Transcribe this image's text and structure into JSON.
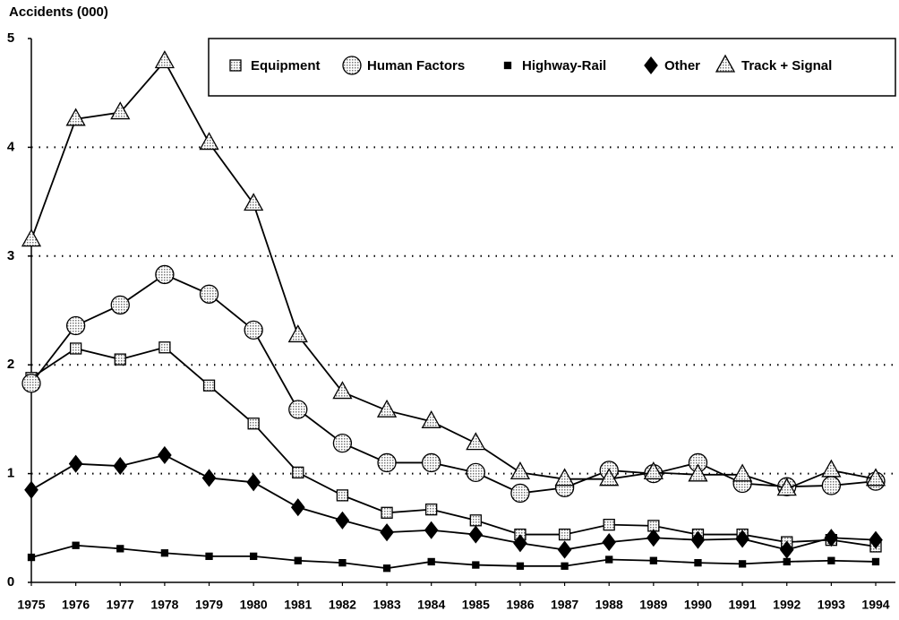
{
  "chart_data": {
    "type": "line",
    "y_axis_label": "Accidents (000)",
    "categories": [
      "1975",
      "1976",
      "1977",
      "1978",
      "1979",
      "1980",
      "1981",
      "1982",
      "1983",
      "1984",
      "1985",
      "1986",
      "1987",
      "1988",
      "1989",
      "1990",
      "1991",
      "1992",
      "1993",
      "1994"
    ],
    "ylim": [
      0,
      5
    ],
    "yticks": [
      0,
      1,
      2,
      3,
      4,
      5
    ],
    "grid": true,
    "legend": "top-right",
    "series": [
      {
        "name": "Equipment",
        "color": "#000000",
        "marker": "square",
        "values": [
          1.88,
          2.15,
          2.05,
          2.16,
          1.81,
          1.46,
          1.01,
          0.8,
          0.64,
          0.67,
          0.57,
          0.44,
          0.44,
          0.53,
          0.52,
          0.44,
          0.44,
          0.37,
          0.39,
          0.33
        ]
      },
      {
        "name": "Human Factors",
        "color": "#000000",
        "marker": "circle",
        "values": [
          1.83,
          2.36,
          2.55,
          2.83,
          2.65,
          2.32,
          1.59,
          1.28,
          1.1,
          1.1,
          1.01,
          0.82,
          0.87,
          1.03,
          1.0,
          1.1,
          0.91,
          0.88,
          0.89,
          0.93
        ]
      },
      {
        "name": "Highway-Rail",
        "color": "#000000",
        "marker": "small-square",
        "values": [
          0.23,
          0.34,
          0.31,
          0.27,
          0.24,
          0.24,
          0.2,
          0.18,
          0.13,
          0.19,
          0.16,
          0.15,
          0.15,
          0.21,
          0.2,
          0.18,
          0.17,
          0.19,
          0.2,
          0.19
        ]
      },
      {
        "name": "Other",
        "color": "#000000",
        "marker": "diamond",
        "values": [
          0.85,
          1.09,
          1.07,
          1.17,
          0.96,
          0.92,
          0.69,
          0.57,
          0.46,
          0.48,
          0.44,
          0.36,
          0.3,
          0.37,
          0.41,
          0.39,
          0.4,
          0.3,
          0.41,
          0.39
        ]
      },
      {
        "name": "Track + Signal",
        "color": "#000000",
        "marker": "triangle",
        "values": [
          3.15,
          4.26,
          4.32,
          4.79,
          4.04,
          3.48,
          2.27,
          1.75,
          1.58,
          1.48,
          1.28,
          1.01,
          0.95,
          0.95,
          1.01,
          0.99,
          0.99,
          0.86,
          1.03,
          0.95
        ]
      }
    ]
  }
}
